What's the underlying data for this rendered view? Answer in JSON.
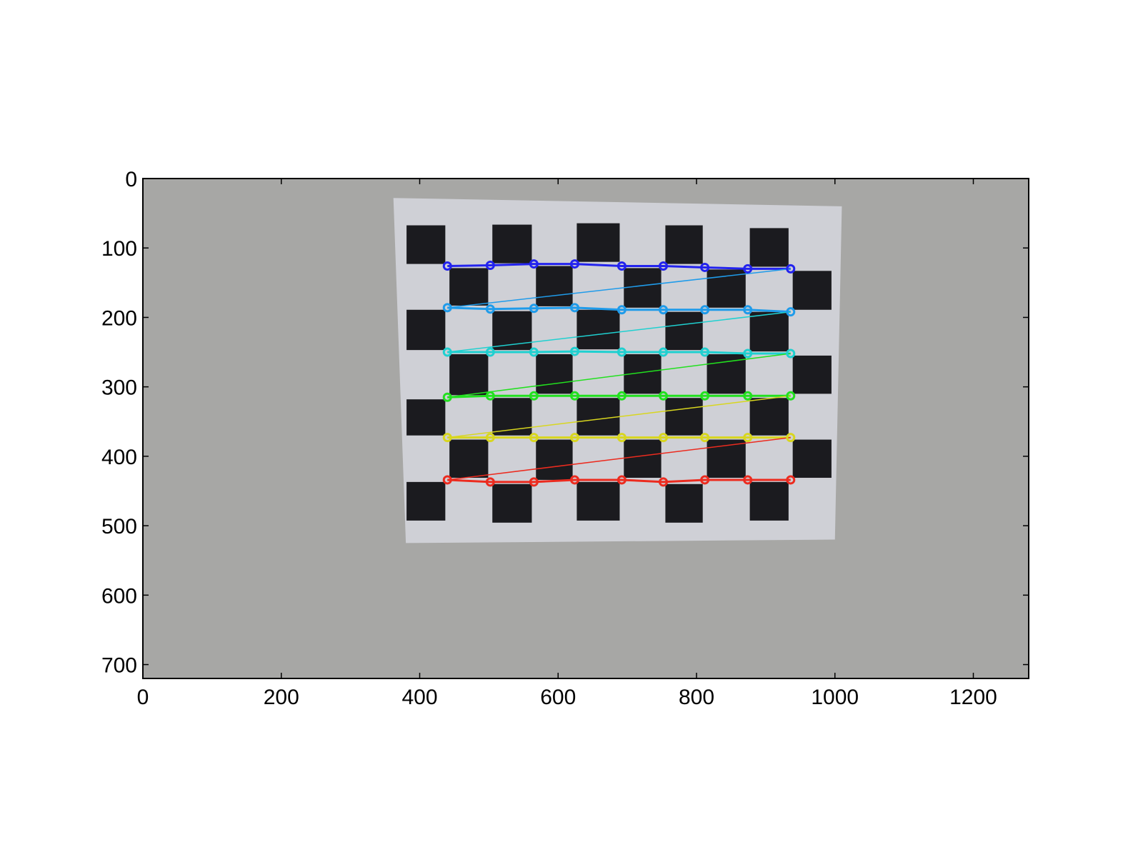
{
  "image": {
    "description_colors": {
      "background_wall": "#a7a7a5",
      "paper": "#cfd0d6",
      "square": "#1b1b1f",
      "figure_bg": "#ffffff"
    },
    "width": 1280,
    "height": 720
  },
  "axes": {
    "x_ticks": [
      {
        "value": 0,
        "label": "0"
      },
      {
        "value": 200,
        "label": "200"
      },
      {
        "value": 400,
        "label": "400"
      },
      {
        "value": 600,
        "label": "600"
      },
      {
        "value": 800,
        "label": "800"
      },
      {
        "value": 1000,
        "label": "1000"
      },
      {
        "value": 1200,
        "label": "1200"
      }
    ],
    "y_ticks": [
      {
        "value": 0,
        "label": "0"
      },
      {
        "value": 100,
        "label": "100"
      },
      {
        "value": 200,
        "label": "200"
      },
      {
        "value": 300,
        "label": "300"
      },
      {
        "value": 400,
        "label": "400"
      },
      {
        "value": 500,
        "label": "500"
      },
      {
        "value": 600,
        "label": "600"
      },
      {
        "value": 700,
        "label": "700"
      }
    ],
    "xlim": [
      0,
      1280
    ],
    "ylim": [
      720,
      0
    ]
  },
  "corner_rows": [
    {
      "color": "#2323ee",
      "y": [
        126,
        125,
        123,
        123,
        126,
        126,
        128,
        130,
        130
      ]
    },
    {
      "color": "#1f9bea",
      "y": [
        186,
        188,
        187,
        186,
        189,
        189,
        189,
        189,
        192
      ]
    },
    {
      "color": "#1fd0d0",
      "y": [
        250,
        250,
        250,
        249,
        250,
        250,
        250,
        252,
        252
      ]
    },
    {
      "color": "#22e01f",
      "y": [
        315,
        313,
        313,
        313,
        313,
        313,
        313,
        313,
        313
      ]
    },
    {
      "color": "#d8d61f",
      "y": [
        373,
        373,
        373,
        373,
        373,
        373,
        373,
        373,
        373
      ]
    },
    {
      "color": "#ec2b1f",
      "y": [
        434,
        437,
        437,
        434,
        434,
        437,
        434,
        434,
        434
      ]
    }
  ],
  "corner_columns_x": [
    440,
    502,
    565,
    624,
    692,
    752,
    812,
    874,
    936
  ]
}
